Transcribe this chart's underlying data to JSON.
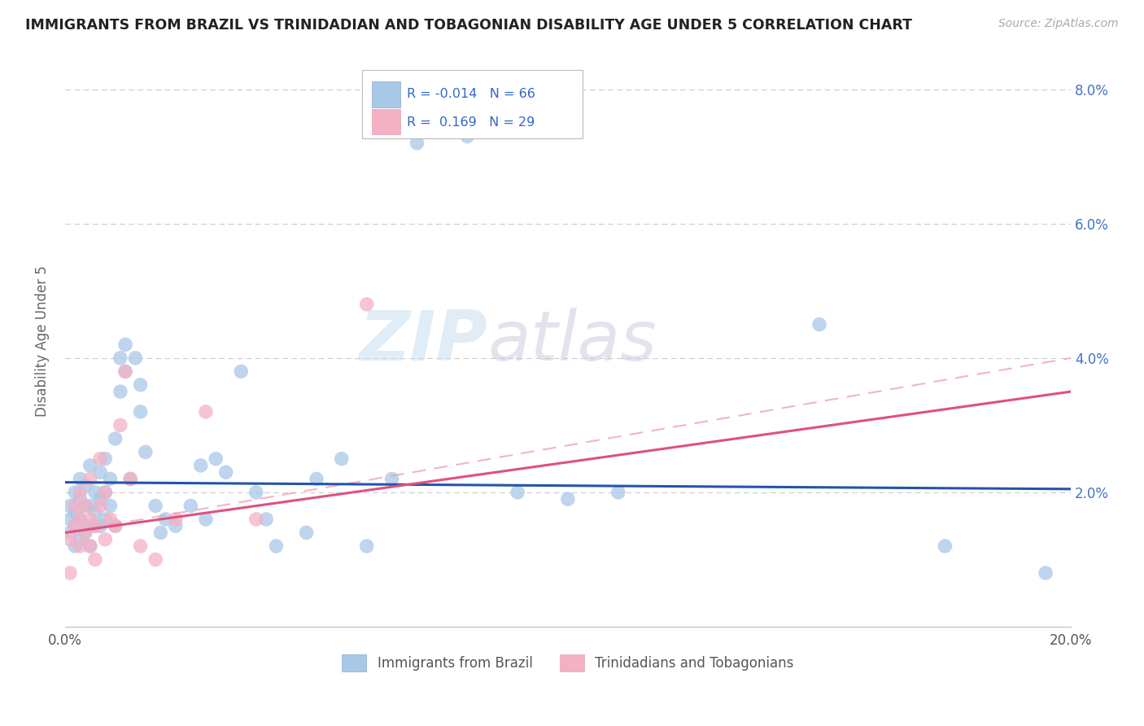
{
  "title": "IMMIGRANTS FROM BRAZIL VS TRINIDADIAN AND TOBAGONIAN DISABILITY AGE UNDER 5 CORRELATION CHART",
  "source": "Source: ZipAtlas.com",
  "ylabel": "Disability Age Under 5",
  "xlim": [
    0.0,
    0.2
  ],
  "ylim": [
    0.0,
    0.085
  ],
  "ytick_pos": [
    0.0,
    0.02,
    0.04,
    0.06,
    0.08
  ],
  "ytick_labels_right": [
    "",
    "2.0%",
    "4.0%",
    "6.0%",
    "8.0%"
  ],
  "xtick_pos": [
    0.0,
    0.05,
    0.1,
    0.15,
    0.2
  ],
  "xtick_labels": [
    "0.0%",
    "",
    "",
    "",
    "20.0%"
  ],
  "legend_brazil_label": "Immigrants from Brazil",
  "legend_tt_label": "Trinidadians and Tobagonians",
  "R_brazil": -0.014,
  "N_brazil": 66,
  "R_tt": 0.169,
  "N_tt": 29,
  "brazil_color": "#a8c8e8",
  "tt_color": "#f4b0c4",
  "brazil_line_color": "#2255aa",
  "tt_line_color": "#e05080",
  "tt_dash_color": "#e898b0",
  "background_color": "#ffffff",
  "watermark_zip": "ZIP",
  "watermark_atlas": "atlas",
  "brazil_x": [
    0.001,
    0.001,
    0.001,
    0.002,
    0.002,
    0.002,
    0.002,
    0.003,
    0.003,
    0.003,
    0.003,
    0.004,
    0.004,
    0.004,
    0.005,
    0.005,
    0.005,
    0.005,
    0.006,
    0.006,
    0.006,
    0.007,
    0.007,
    0.007,
    0.008,
    0.008,
    0.008,
    0.009,
    0.009,
    0.01,
    0.01,
    0.011,
    0.011,
    0.012,
    0.012,
    0.013,
    0.014,
    0.015,
    0.015,
    0.016,
    0.018,
    0.019,
    0.02,
    0.022,
    0.025,
    0.027,
    0.028,
    0.03,
    0.032,
    0.035,
    0.038,
    0.04,
    0.042,
    0.048,
    0.05,
    0.055,
    0.06,
    0.065,
    0.07,
    0.08,
    0.09,
    0.1,
    0.11,
    0.15,
    0.175,
    0.195
  ],
  "brazil_y": [
    0.014,
    0.016,
    0.018,
    0.012,
    0.015,
    0.017,
    0.02,
    0.013,
    0.016,
    0.019,
    0.022,
    0.014,
    0.018,
    0.021,
    0.012,
    0.015,
    0.018,
    0.024,
    0.015,
    0.017,
    0.02,
    0.015,
    0.019,
    0.023,
    0.016,
    0.02,
    0.025,
    0.018,
    0.022,
    0.015,
    0.028,
    0.035,
    0.04,
    0.042,
    0.038,
    0.022,
    0.04,
    0.032,
    0.036,
    0.026,
    0.018,
    0.014,
    0.016,
    0.015,
    0.018,
    0.024,
    0.016,
    0.025,
    0.023,
    0.038,
    0.02,
    0.016,
    0.012,
    0.014,
    0.022,
    0.025,
    0.012,
    0.022,
    0.072,
    0.073,
    0.02,
    0.019,
    0.02,
    0.045,
    0.012,
    0.008
  ],
  "tt_x": [
    0.001,
    0.001,
    0.002,
    0.002,
    0.003,
    0.003,
    0.003,
    0.004,
    0.004,
    0.005,
    0.005,
    0.005,
    0.006,
    0.006,
    0.007,
    0.007,
    0.008,
    0.008,
    0.009,
    0.01,
    0.011,
    0.012,
    0.013,
    0.015,
    0.018,
    0.022,
    0.028,
    0.038,
    0.06
  ],
  "tt_y": [
    0.008,
    0.013,
    0.015,
    0.018,
    0.012,
    0.016,
    0.02,
    0.014,
    0.018,
    0.012,
    0.016,
    0.022,
    0.01,
    0.015,
    0.018,
    0.025,
    0.013,
    0.02,
    0.016,
    0.015,
    0.03,
    0.038,
    0.022,
    0.012,
    0.01,
    0.016,
    0.032,
    0.016,
    0.048
  ],
  "brazil_trendline_y0": 0.0215,
  "brazil_trendline_y1": 0.0205,
  "tt_trendline_y0": 0.014,
  "tt_trendline_y1": 0.035
}
